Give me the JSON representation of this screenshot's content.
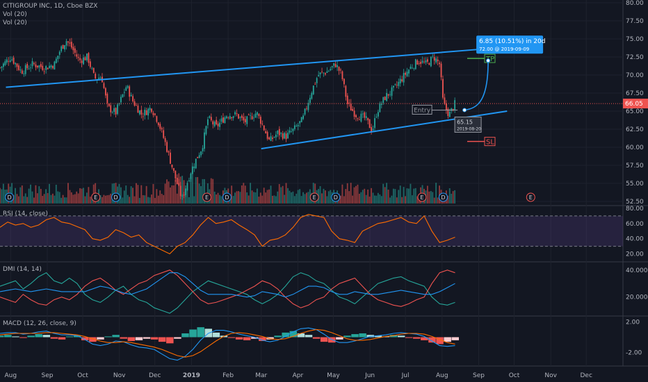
{
  "chart_data": [
    {
      "type": "candlestick",
      "title": "CITIGROUP INC, 1D, Cboe BZX",
      "legend": [
        "Vol (20)",
        "Vol (20)"
      ],
      "x_ticks": [
        "Aug",
        "Sep",
        "Oct",
        "Nov",
        "Dec",
        "2019",
        "Feb",
        "Mar",
        "Apr",
        "May",
        "Jun",
        "Jul",
        "Aug",
        "Sep",
        "Oct",
        "Nov",
        "Dec"
      ],
      "y_ticks": [
        "80.00",
        "77.50",
        "75.00",
        "72.50",
        "70.00",
        "67.50",
        "65.00",
        "62.50",
        "60.00",
        "57.50",
        "55.00",
        "52.50"
      ],
      "ylim": [
        52,
        80.5
      ],
      "last_price": "66.05",
      "price_line_color": "#ef5350",
      "up_color": "#26a69a",
      "down_color": "#ef5350",
      "close_path": [
        [
          "2018-07-23",
          71.0
        ],
        [
          "2018-08-01",
          72.5
        ],
        [
          "2018-08-10",
          70.5
        ],
        [
          "2018-08-20",
          71.5
        ],
        [
          "2018-08-30",
          71.0
        ],
        [
          "2018-09-07",
          71.5
        ],
        [
          "2018-09-12",
          73.5
        ],
        [
          "2018-09-17",
          74.8
        ],
        [
          "2018-09-21",
          74.0
        ],
        [
          "2018-09-28",
          72.0
        ],
        [
          "2018-10-05",
          72.5
        ],
        [
          "2018-10-11",
          69.5
        ],
        [
          "2018-10-17",
          69.8
        ],
        [
          "2018-10-22",
          65.5
        ],
        [
          "2018-10-29",
          64.8
        ],
        [
          "2018-11-02",
          66.5
        ],
        [
          "2018-11-07",
          68.5
        ],
        [
          "2018-11-12",
          66.5
        ],
        [
          "2018-11-20",
          64.5
        ],
        [
          "2018-11-28",
          65.5
        ],
        [
          "2018-12-04",
          63.5
        ],
        [
          "2018-12-10",
          60.5
        ],
        [
          "2018-12-17",
          56.5
        ],
        [
          "2018-12-24",
          52.8
        ],
        [
          "2018-12-31",
          56.5
        ],
        [
          "2019-01-04",
          58.0
        ],
        [
          "2019-01-10",
          60.0
        ],
        [
          "2019-01-15",
          64.0
        ],
        [
          "2019-01-22",
          62.8
        ],
        [
          "2019-01-31",
          64.5
        ],
        [
          "2019-02-08",
          64.5
        ],
        [
          "2019-02-15",
          63.5
        ],
        [
          "2019-02-25",
          64.8
        ],
        [
          "2019-03-01",
          63.5
        ],
        [
          "2019-03-08",
          60.8
        ],
        [
          "2019-03-15",
          62.0
        ],
        [
          "2019-03-22",
          61.5
        ],
        [
          "2019-03-29",
          62.5
        ],
        [
          "2019-04-05",
          63.8
        ],
        [
          "2019-04-12",
          67.5
        ],
        [
          "2019-04-18",
          70.0
        ],
        [
          "2019-04-26",
          70.5
        ],
        [
          "2019-05-03",
          71.5
        ],
        [
          "2019-05-08",
          70.0
        ],
        [
          "2019-05-13",
          66.0
        ],
        [
          "2019-05-20",
          64.5
        ],
        [
          "2019-05-28",
          64.0
        ],
        [
          "2019-06-03",
          62.3
        ],
        [
          "2019-06-07",
          65.0
        ],
        [
          "2019-06-14",
          67.0
        ],
        [
          "2019-06-21",
          68.0
        ],
        [
          "2019-06-28",
          69.5
        ],
        [
          "2019-07-05",
          71.0
        ],
        [
          "2019-07-12",
          72.0
        ],
        [
          "2019-07-19",
          71.5
        ],
        [
          "2019-07-25",
          72.5
        ],
        [
          "2019-07-30",
          71.5
        ],
        [
          "2019-08-02",
          66.0
        ],
        [
          "2019-08-07",
          64.5
        ],
        [
          "2019-08-12",
          66.05
        ]
      ],
      "volume_bars": 150,
      "earnings_markers": [
        {
          "date": "2018-10-12",
          "label": "E"
        },
        {
          "date": "2019-01-14",
          "label": "E"
        },
        {
          "date": "2019-04-15",
          "label": "E"
        },
        {
          "date": "2019-07-15",
          "label": "E"
        },
        {
          "date": "2019-10-15",
          "label": "E"
        }
      ],
      "dividend_markers": [
        {
          "date": "2018-07-31",
          "label": "D"
        },
        {
          "date": "2018-10-29",
          "label": "D"
        },
        {
          "date": "2019-01-31",
          "label": "D"
        },
        {
          "date": "2019-05-03",
          "label": "D"
        },
        {
          "date": "2019-08-02",
          "label": "D"
        }
      ],
      "drawings": {
        "upper_channel": [
          [
            "2018-07-28",
            68.3
          ],
          [
            "2019-09-05",
            73.6
          ]
        ],
        "lower_channel": [
          [
            "2019-03-01",
            59.8
          ],
          [
            "2019-09-25",
            65.0
          ]
        ],
        "projection": {
          "label": "6.85 (10.51%) in 20d",
          "sublabel": "72.00 @ 2019-09-09",
          "from": [
            "2019-08-20",
            65.15
          ],
          "to": [
            "2019-09-09",
            72.0
          ],
          "color": "#2196f3"
        },
        "entry": {
          "label": "Entry",
          "value": "65.15",
          "date": "2019-08-20"
        },
        "tp": {
          "label": "TP",
          "price": 72.3,
          "color": "#4caf50"
        },
        "sl": {
          "label": "SL",
          "price": 60.8,
          "color": "#ef5350"
        }
      }
    },
    {
      "type": "line",
      "title": "RSI (14, close)",
      "y_ticks": [
        "80.00",
        "60.00",
        "40.00",
        "20.00"
      ],
      "ylim": [
        15,
        80
      ],
      "bands": [
        70,
        30
      ],
      "series": [
        {
          "color": "#ff6d00",
          "values": [
            55,
            62,
            58,
            60,
            55,
            58,
            65,
            68,
            62,
            60,
            56,
            52,
            40,
            38,
            42,
            52,
            48,
            42,
            45,
            35,
            30,
            25,
            20,
            30,
            35,
            45,
            58,
            68,
            60,
            62,
            65,
            58,
            52,
            45,
            30,
            38,
            40,
            45,
            55,
            68,
            72,
            70,
            68,
            50,
            40,
            38,
            35,
            50,
            55,
            60,
            62,
            65,
            68,
            62,
            60,
            70,
            50,
            35,
            38,
            42
          ]
        }
      ]
    },
    {
      "type": "line",
      "title": "DMI (14, 14)",
      "y_ticks": [
        "40.0000",
        "20.0000"
      ],
      "ylim": [
        8,
        44
      ],
      "series": [
        {
          "color": "#26a69a",
          "values": [
            28,
            30,
            32,
            26,
            30,
            35,
            38,
            32,
            30,
            34,
            30,
            22,
            18,
            16,
            20,
            25,
            28,
            22,
            18,
            16,
            12,
            10,
            8,
            12,
            18,
            24,
            28,
            32,
            30,
            28,
            26,
            24,
            22,
            18,
            15,
            18,
            22,
            28,
            35,
            38,
            36,
            32,
            30,
            25,
            20,
            18,
            15,
            20,
            25,
            30,
            32,
            34,
            35,
            32,
            30,
            28,
            20,
            15,
            14,
            16
          ]
        },
        {
          "color": "#ef5350",
          "values": [
            20,
            18,
            16,
            22,
            18,
            15,
            14,
            18,
            20,
            18,
            22,
            28,
            32,
            34,
            30,
            25,
            22,
            26,
            30,
            32,
            36,
            38,
            40,
            36,
            30,
            24,
            18,
            15,
            16,
            18,
            20,
            22,
            25,
            28,
            32,
            30,
            26,
            20,
            15,
            12,
            14,
            18,
            20,
            26,
            30,
            32,
            34,
            28,
            22,
            18,
            16,
            14,
            13,
            15,
            18,
            20,
            30,
            38,
            40,
            38
          ]
        },
        {
          "color": "#2196f3",
          "values": [
            24,
            25,
            26,
            25,
            24,
            25,
            26,
            25,
            24,
            24,
            24,
            24,
            26,
            28,
            27,
            25,
            23,
            22,
            24,
            26,
            30,
            34,
            38,
            38,
            35,
            30,
            25,
            22,
            22,
            22,
            22,
            21,
            20,
            21,
            24,
            23,
            22,
            20,
            22,
            25,
            28,
            28,
            27,
            24,
            22,
            22,
            24,
            23,
            22,
            22,
            23,
            24,
            25,
            24,
            23,
            22,
            22,
            24,
            27,
            30
          ]
        }
      ]
    },
    {
      "type": "bar",
      "title": "MACD (12, 26, close, 9)",
      "y_ticks": [
        "2.00",
        "-2.00"
      ],
      "ylim": [
        -3.4,
        2.4
      ],
      "series": [
        {
          "name": "histogram",
          "values": [
            0.2,
            0.3,
            0.1,
            -0.1,
            0.2,
            0.4,
            0.3,
            -0.2,
            -0.3,
            0.1,
            0.2,
            -0.4,
            -0.6,
            -0.3,
            0.1,
            0.3,
            -0.2,
            -0.5,
            -0.4,
            -0.2,
            -0.3,
            -0.6,
            -0.8,
            -0.2,
            0.5,
            1.0,
            1.3,
            1.1,
            0.6,
            0.2,
            -0.1,
            -0.3,
            -0.4,
            -0.2,
            -0.5,
            -0.3,
            0.2,
            0.6,
            0.8,
            0.5,
            0.3,
            -0.2,
            -0.6,
            -0.7,
            -0.3,
            0.2,
            0.4,
            0.5,
            0.3,
            0.2,
            0.1,
            0.3,
            0.2,
            -0.1,
            -0.2,
            -0.4,
            -0.7,
            -0.9,
            -0.6,
            -0.4
          ]
        },
        {
          "name": "macd",
          "color": "#2196f3",
          "values": [
            0.5,
            0.6,
            0.6,
            0.4,
            0.5,
            0.7,
            0.8,
            0.5,
            0.3,
            0.3,
            0.2,
            -0.3,
            -0.9,
            -1.1,
            -0.9,
            -0.5,
            -0.6,
            -1.0,
            -1.3,
            -1.4,
            -1.6,
            -2.2,
            -2.8,
            -3.0,
            -2.5,
            -1.6,
            -0.4,
            0.5,
            0.9,
            0.9,
            0.7,
            0.4,
            0.2,
            0.0,
            -0.4,
            -0.6,
            -0.4,
            0.1,
            0.7,
            1.1,
            1.2,
            1.0,
            0.4,
            -0.3,
            -0.7,
            -0.7,
            -0.5,
            -0.2,
            0.1,
            0.2,
            0.3,
            0.5,
            0.6,
            0.5,
            0.4,
            0.1,
            -0.5,
            -1.1,
            -1.2,
            -1.1
          ]
        },
        {
          "name": "signal",
          "color": "#ff6d00",
          "values": [
            0.3,
            0.4,
            0.5,
            0.5,
            0.5,
            0.5,
            0.6,
            0.6,
            0.5,
            0.4,
            0.3,
            0.1,
            -0.2,
            -0.5,
            -0.7,
            -0.7,
            -0.6,
            -0.7,
            -0.9,
            -1.1,
            -1.3,
            -1.6,
            -2.0,
            -2.4,
            -2.6,
            -2.4,
            -1.9,
            -1.2,
            -0.5,
            0.1,
            0.5,
            0.6,
            0.5,
            0.3,
            0.1,
            -0.2,
            -0.3,
            -0.2,
            0.1,
            0.5,
            0.8,
            1.0,
            0.9,
            0.6,
            0.2,
            -0.2,
            -0.4,
            -0.4,
            -0.3,
            -0.1,
            0.1,
            0.2,
            0.4,
            0.5,
            0.5,
            0.4,
            0.1,
            -0.3,
            -0.7,
            -0.9
          ]
        }
      ]
    }
  ]
}
